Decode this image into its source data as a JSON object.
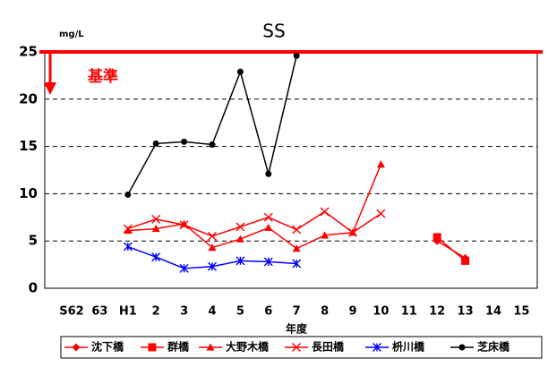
{
  "chart_data": {
    "type": "line",
    "title": "SS",
    "y_unit": "mg/L",
    "x_label": "年度",
    "categories": [
      "S62",
      "63",
      "H1",
      "2",
      "3",
      "4",
      "5",
      "6",
      "7",
      "8",
      "9",
      "10",
      "11",
      "12",
      "13",
      "14",
      "15"
    ],
    "ylim": [
      0,
      25
    ],
    "yticks": [
      0,
      5,
      10,
      15,
      20,
      25
    ],
    "grid": true,
    "standard": 25,
    "standard_label": "基準",
    "standard_color": "#ff0000",
    "series": [
      {
        "name": "沈下橋",
        "color": "#ff0000",
        "marker": "diamond",
        "values": [
          null,
          null,
          null,
          null,
          null,
          null,
          null,
          null,
          null,
          null,
          null,
          null,
          null,
          5.0,
          3.2,
          null,
          null
        ]
      },
      {
        "name": "群橋",
        "color": "#ff0000",
        "marker": "square",
        "values": [
          null,
          null,
          null,
          null,
          null,
          null,
          null,
          null,
          null,
          null,
          null,
          null,
          null,
          5.4,
          2.9,
          null,
          null
        ]
      },
      {
        "name": "大野木橋",
        "color": "#ff0000",
        "marker": "triangle",
        "values": [
          null,
          null,
          6.1,
          6.3,
          6.8,
          4.3,
          5.2,
          6.4,
          4.2,
          5.6,
          5.9,
          13.1,
          null,
          null,
          null,
          null,
          null
        ]
      },
      {
        "name": "長田橋",
        "color": "#ff0000",
        "marker": "x",
        "values": [
          null,
          null,
          6.3,
          7.3,
          6.7,
          5.5,
          6.5,
          7.5,
          6.2,
          8.1,
          5.9,
          7.9,
          null,
          null,
          null,
          null,
          null
        ]
      },
      {
        "name": "枡川橋",
        "color": "#0000ff",
        "marker": "asterisk",
        "values": [
          null,
          null,
          4.4,
          3.3,
          2.1,
          2.3,
          2.9,
          2.8,
          2.6,
          null,
          null,
          null,
          null,
          null,
          null,
          null,
          null
        ]
      },
      {
        "name": "芝床橋",
        "color": "#000000",
        "marker": "circle",
        "values": [
          null,
          null,
          9.9,
          15.3,
          15.5,
          15.2,
          22.9,
          12.1,
          24.6,
          null,
          null,
          null,
          null,
          null,
          null,
          null,
          null
        ]
      }
    ]
  }
}
